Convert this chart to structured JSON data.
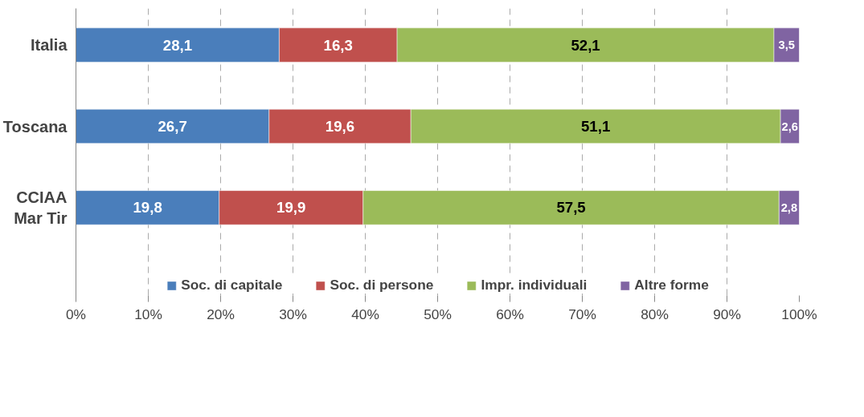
{
  "chart_data": {
    "type": "bar",
    "orientation": "horizontal",
    "stacked": true,
    "categories": [
      "Italia",
      "Toscana",
      "CCIAA\nMar Tir"
    ],
    "series": [
      {
        "name": "Soc. di capitale",
        "color": "#4a7ebb",
        "values": [
          28.1,
          26.7,
          19.8
        ],
        "value_labels": [
          "28,1",
          "26,7",
          "19,8"
        ]
      },
      {
        "name": "Soc. di persone",
        "color": "#c0504d",
        "values": [
          16.3,
          19.6,
          19.9
        ],
        "value_labels": [
          "16,3",
          "19,6",
          "19,9"
        ]
      },
      {
        "name": "Impr. individuali",
        "color": "#9bbb59",
        "values": [
          52.1,
          51.1,
          57.5
        ],
        "value_labels": [
          "52,1",
          "51,1",
          "57,5"
        ]
      },
      {
        "name": "Altre forme",
        "color": "#8064a2",
        "values": [
          3.5,
          2.6,
          2.8
        ],
        "value_labels": [
          "3,5",
          "2,6",
          "2,8"
        ]
      }
    ],
    "xlim": [
      0,
      100
    ],
    "xticks": [
      {
        "value": 0,
        "label": "0%"
      },
      {
        "value": 10,
        "label": "10%"
      },
      {
        "value": 20,
        "label": "20%"
      },
      {
        "value": 30,
        "label": "30%"
      },
      {
        "value": 40,
        "label": "40%"
      },
      {
        "value": 50,
        "label": "50%"
      },
      {
        "value": 60,
        "label": "60%"
      },
      {
        "value": 70,
        "label": "70%"
      },
      {
        "value": 80,
        "label": "80%"
      },
      {
        "value": 90,
        "label": "90%"
      },
      {
        "value": 100,
        "label": "100%"
      }
    ],
    "grid": "x",
    "legend": "bottom"
  }
}
